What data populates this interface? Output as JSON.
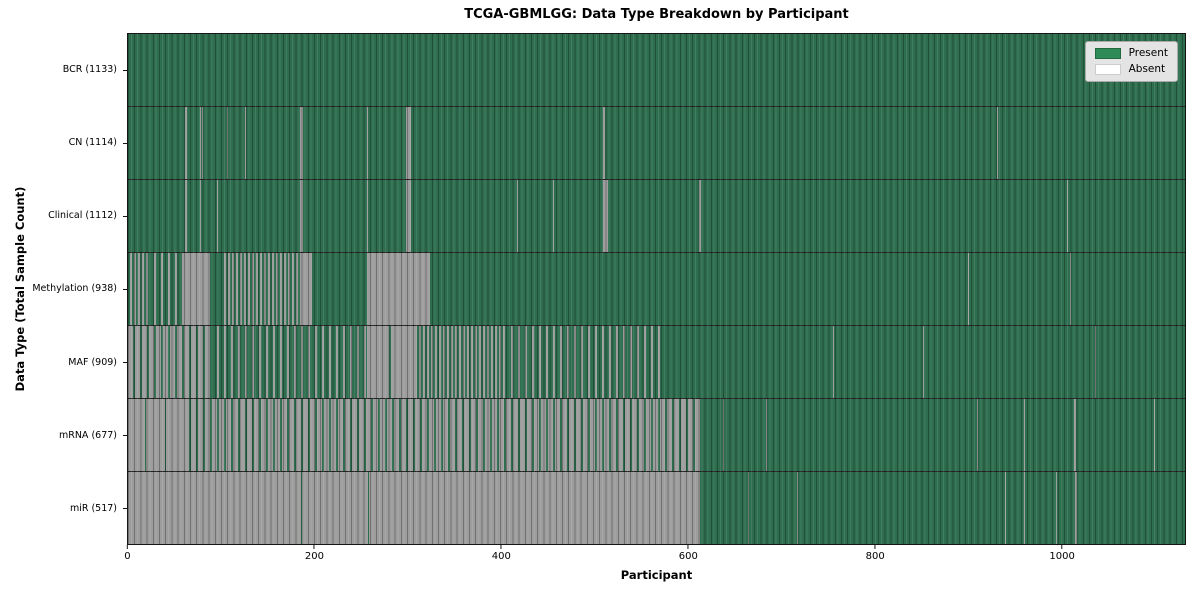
{
  "title": "TCGA-GBMLGG: Data Type Breakdown by Participant",
  "axes": {
    "xlabel": "Participant",
    "ylabel": "Data Type (Total Sample Count)"
  },
  "legend": {
    "present_label": "Present",
    "absent_label": "Absent"
  },
  "colors": {
    "present_fill": "#2e6e4f",
    "absent_fill": "#9d9d9d",
    "legend_present": "#2e8b57",
    "legend_absent": "#ffffff"
  },
  "chart_data": {
    "type": "heatmap",
    "title": "TCGA-GBMLGG: Data Type Breakdown by Participant",
    "xlabel": "Participant",
    "ylabel": "Data Type (Total Sample Count)",
    "legend_entries": [
      {
        "label": "Present",
        "color": "#2e8b57"
      },
      {
        "label": "Absent",
        "color": "#ffffff"
      }
    ],
    "legend_position": "upper right",
    "grid": false,
    "x_domain": [
      0,
      1133
    ],
    "x_ticks": [
      0,
      200,
      400,
      600,
      800,
      1000
    ],
    "segment_states": {
      "P": "present",
      "A": "absent",
      "M": "mixed ~50% present",
      "MG": "mostly present with absent stripes",
      "MA": "mostly absent with present stripes"
    },
    "rows": [
      {
        "data_type": "BCR",
        "total_samples": 1133,
        "label": "BCR (1133)",
        "segments": [
          [
            0,
            1133,
            "P"
          ]
        ]
      },
      {
        "data_type": "CN",
        "total_samples": 1114,
        "label": "CN (1114)",
        "segments": [
          [
            0,
            61,
            "P"
          ],
          [
            61,
            63,
            "A"
          ],
          [
            63,
            77,
            "P"
          ],
          [
            77,
            78,
            "A"
          ],
          [
            78,
            79,
            "P"
          ],
          [
            79,
            80,
            "A"
          ],
          [
            80,
            106,
            "P"
          ],
          [
            106,
            107,
            "A"
          ],
          [
            107,
            125,
            "P"
          ],
          [
            125,
            126,
            "A"
          ],
          [
            126,
            184,
            "P"
          ],
          [
            184,
            188,
            "A"
          ],
          [
            188,
            256,
            "P"
          ],
          [
            256,
            257,
            "A"
          ],
          [
            257,
            298,
            "P"
          ],
          [
            298,
            303,
            "A"
          ],
          [
            303,
            509,
            "P"
          ],
          [
            509,
            511,
            "A"
          ],
          [
            511,
            931,
            "P"
          ],
          [
            931,
            933,
            "A"
          ],
          [
            933,
            1133,
            "P"
          ]
        ]
      },
      {
        "data_type": "Clinical",
        "total_samples": 1112,
        "label": "Clinical (1112)",
        "segments": [
          [
            0,
            61,
            "P"
          ],
          [
            61,
            63,
            "A"
          ],
          [
            63,
            77,
            "P"
          ],
          [
            77,
            78,
            "A"
          ],
          [
            78,
            95,
            "P"
          ],
          [
            95,
            96,
            "A"
          ],
          [
            96,
            184,
            "P"
          ],
          [
            184,
            188,
            "A"
          ],
          [
            188,
            256,
            "P"
          ],
          [
            256,
            257,
            "A"
          ],
          [
            257,
            298,
            "P"
          ],
          [
            298,
            303,
            "A"
          ],
          [
            303,
            417,
            "P"
          ],
          [
            417,
            418,
            "A"
          ],
          [
            418,
            456,
            "P"
          ],
          [
            456,
            457,
            "A"
          ],
          [
            457,
            509,
            "P"
          ],
          [
            509,
            515,
            "A"
          ],
          [
            515,
            612,
            "P"
          ],
          [
            612,
            614,
            "A"
          ],
          [
            614,
            1007,
            "P"
          ],
          [
            1007,
            1008,
            "A"
          ],
          [
            1008,
            1133,
            "P"
          ]
        ]
      },
      {
        "data_type": "Methylation",
        "total_samples": 938,
        "label": "Methylation (938)",
        "segments": [
          [
            0,
            22,
            "M"
          ],
          [
            22,
            60,
            "MG"
          ],
          [
            60,
            88,
            "A"
          ],
          [
            88,
            101,
            "P"
          ],
          [
            101,
            186,
            "M"
          ],
          [
            186,
            197,
            "A"
          ],
          [
            197,
            256,
            "P"
          ],
          [
            256,
            324,
            "A"
          ],
          [
            324,
            900,
            "P"
          ],
          [
            900,
            902,
            "A"
          ],
          [
            902,
            1010,
            "P"
          ],
          [
            1010,
            1011,
            "A"
          ],
          [
            1011,
            1133,
            "P"
          ]
        ]
      },
      {
        "data_type": "MAF",
        "total_samples": 909,
        "label": "MAF (909)",
        "segments": [
          [
            0,
            90,
            "MA"
          ],
          [
            90,
            256,
            "MG"
          ],
          [
            256,
            280,
            "A"
          ],
          [
            280,
            282,
            "P"
          ],
          [
            282,
            310,
            "A"
          ],
          [
            310,
            405,
            "M"
          ],
          [
            405,
            570,
            "MG"
          ],
          [
            570,
            756,
            "P"
          ],
          [
            756,
            757,
            "A"
          ],
          [
            757,
            852,
            "P"
          ],
          [
            852,
            853,
            "A"
          ],
          [
            853,
            1036,
            "P"
          ],
          [
            1036,
            1038,
            "A"
          ],
          [
            1038,
            1133,
            "P"
          ]
        ]
      },
      {
        "data_type": "mRNA",
        "total_samples": 677,
        "label": "mRNA (677)",
        "segments": [
          [
            0,
            18,
            "A"
          ],
          [
            18,
            19,
            "P"
          ],
          [
            19,
            40,
            "A"
          ],
          [
            40,
            41,
            "P"
          ],
          [
            41,
            60,
            "A"
          ],
          [
            60,
            613,
            "MA"
          ],
          [
            613,
            638,
            "P"
          ],
          [
            638,
            639,
            "A"
          ],
          [
            639,
            684,
            "P"
          ],
          [
            684,
            685,
            "A"
          ],
          [
            685,
            910,
            "P"
          ],
          [
            910,
            911,
            "A"
          ],
          [
            911,
            960,
            "P"
          ],
          [
            960,
            961,
            "A"
          ],
          [
            961,
            1014,
            "P"
          ],
          [
            1014,
            1016,
            "A"
          ],
          [
            1016,
            1100,
            "P"
          ],
          [
            1100,
            1101,
            "A"
          ],
          [
            1101,
            1133,
            "P"
          ]
        ]
      },
      {
        "data_type": "miR",
        "total_samples": 517,
        "label": "miR (517)",
        "segments": [
          [
            0,
            185,
            "A"
          ],
          [
            185,
            186,
            "P"
          ],
          [
            186,
            257,
            "A"
          ],
          [
            257,
            258,
            "P"
          ],
          [
            258,
            613,
            "A"
          ],
          [
            613,
            665,
            "P"
          ],
          [
            665,
            666,
            "A"
          ],
          [
            666,
            717,
            "P"
          ],
          [
            717,
            718,
            "A"
          ],
          [
            718,
            940,
            "P"
          ],
          [
            940,
            941,
            "A"
          ],
          [
            941,
            960,
            "P"
          ],
          [
            960,
            961,
            "A"
          ],
          [
            961,
            995,
            "P"
          ],
          [
            995,
            996,
            "A"
          ],
          [
            996,
            1015,
            "P"
          ],
          [
            1015,
            1017,
            "A"
          ],
          [
            1017,
            1133,
            "P"
          ]
        ]
      }
    ]
  }
}
